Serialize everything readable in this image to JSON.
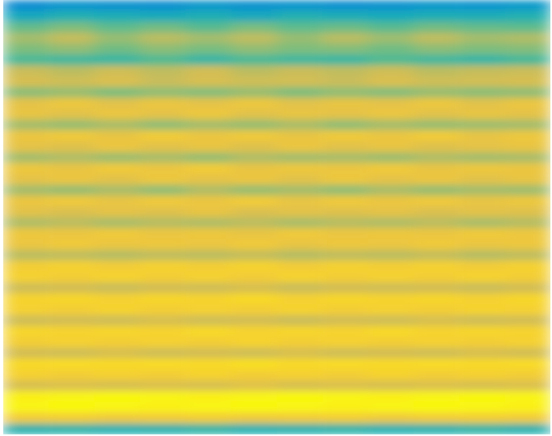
{
  "chart_data": {
    "type": "heatmap",
    "tick_labels": false,
    "zlim": [
      0,
      1
    ],
    "cells": [
      [
        0.28,
        0.31,
        0.3,
        0.29,
        0.32,
        0.3,
        0.31,
        0.29,
        0.3,
        0.32,
        0.31,
        0.33
      ],
      [
        0.4,
        0.44,
        0.42,
        0.41,
        0.43,
        0.4,
        0.44,
        0.42,
        0.41,
        0.43,
        0.42,
        0.44
      ],
      [
        0.56,
        0.6,
        0.55,
        0.58,
        0.54,
        0.59,
        0.55,
        0.57,
        0.54,
        0.58,
        0.56,
        0.55
      ],
      [
        0.66,
        0.72,
        0.64,
        0.7,
        0.66,
        0.71,
        0.64,
        0.7,
        0.65,
        0.71,
        0.66,
        0.68
      ],
      [
        0.6,
        0.63,
        0.58,
        0.62,
        0.59,
        0.63,
        0.6,
        0.61,
        0.58,
        0.62,
        0.6,
        0.61
      ],
      [
        0.52,
        0.5,
        0.49,
        0.53,
        0.48,
        0.52,
        0.5,
        0.49,
        0.53,
        0.5,
        0.48,
        0.51
      ],
      [
        0.73,
        0.7,
        0.74,
        0.71,
        0.75,
        0.7,
        0.73,
        0.71,
        0.74,
        0.7,
        0.72,
        0.73
      ],
      [
        0.76,
        0.74,
        0.77,
        0.73,
        0.76,
        0.74,
        0.75,
        0.73,
        0.77,
        0.74,
        0.75,
        0.76
      ],
      [
        0.62,
        0.64,
        0.6,
        0.63,
        0.61,
        0.64,
        0.6,
        0.63,
        0.61,
        0.64,
        0.62,
        0.63
      ],
      [
        0.8,
        0.83,
        0.79,
        0.82,
        0.8,
        0.83,
        0.79,
        0.81,
        0.8,
        0.83,
        0.79,
        0.82
      ],
      [
        0.81,
        0.79,
        0.82,
        0.8,
        0.83,
        0.79,
        0.81,
        0.8,
        0.82,
        0.79,
        0.81,
        0.8
      ],
      [
        0.66,
        0.64,
        0.67,
        0.63,
        0.66,
        0.64,
        0.67,
        0.63,
        0.66,
        0.64,
        0.65,
        0.66
      ],
      [
        0.82,
        0.84,
        0.81,
        0.85,
        0.82,
        0.84,
        0.81,
        0.84,
        0.82,
        0.85,
        0.81,
        0.83
      ],
      [
        0.8,
        0.78,
        0.82,
        0.79,
        0.81,
        0.78,
        0.82,
        0.79,
        0.81,
        0.78,
        0.8,
        0.81
      ],
      [
        0.66,
        0.68,
        0.65,
        0.67,
        0.64,
        0.68,
        0.66,
        0.67,
        0.65,
        0.68,
        0.66,
        0.67
      ],
      [
        0.83,
        0.81,
        0.84,
        0.82,
        0.85,
        0.81,
        0.83,
        0.82,
        0.84,
        0.81,
        0.83,
        0.82
      ],
      [
        0.8,
        0.82,
        0.79,
        0.83,
        0.8,
        0.82,
        0.79,
        0.83,
        0.8,
        0.82,
        0.79,
        0.81
      ],
      [
        0.66,
        0.64,
        0.67,
        0.63,
        0.68,
        0.64,
        0.66,
        0.63,
        0.67,
        0.64,
        0.66,
        0.65
      ],
      [
        0.82,
        0.84,
        0.81,
        0.84,
        0.82,
        0.85,
        0.81,
        0.84,
        0.82,
        0.84,
        0.81,
        0.83
      ],
      [
        0.79,
        0.77,
        0.8,
        0.78,
        0.81,
        0.77,
        0.79,
        0.78,
        0.8,
        0.77,
        0.79,
        0.78
      ],
      [
        0.68,
        0.7,
        0.67,
        0.69,
        0.68,
        0.7,
        0.67,
        0.69,
        0.68,
        0.7,
        0.67,
        0.69
      ],
      [
        0.83,
        0.82,
        0.84,
        0.82,
        0.83,
        0.81,
        0.84,
        0.82,
        0.83,
        0.82,
        0.84,
        0.83
      ],
      [
        0.82,
        0.84,
        0.82,
        0.83,
        0.82,
        0.84,
        0.81,
        0.83,
        0.82,
        0.84,
        0.82,
        0.83
      ],
      [
        0.7,
        0.71,
        0.69,
        0.71,
        0.7,
        0.72,
        0.69,
        0.71,
        0.7,
        0.72,
        0.69,
        0.71
      ],
      [
        0.86,
        0.87,
        0.85,
        0.87,
        0.86,
        0.88,
        0.85,
        0.87,
        0.86,
        0.87,
        0.85,
        0.87
      ],
      [
        0.87,
        0.86,
        0.88,
        0.86,
        0.87,
        0.85,
        0.88,
        0.86,
        0.87,
        0.86,
        0.88,
        0.86
      ],
      [
        0.74,
        0.75,
        0.73,
        0.75,
        0.74,
        0.76,
        0.73,
        0.75,
        0.74,
        0.75,
        0.73,
        0.75
      ],
      [
        0.88,
        0.89,
        0.87,
        0.89,
        0.88,
        0.9,
        0.87,
        0.89,
        0.88,
        0.89,
        0.87,
        0.89
      ],
      [
        0.87,
        0.86,
        0.88,
        0.86,
        0.87,
        0.86,
        0.88,
        0.86,
        0.87,
        0.86,
        0.88,
        0.87
      ],
      [
        0.74,
        0.75,
        0.74,
        0.76,
        0.74,
        0.75,
        0.73,
        0.75,
        0.74,
        0.76,
        0.74,
        0.75
      ],
      [
        0.89,
        0.88,
        0.89,
        0.88,
        0.9,
        0.88,
        0.89,
        0.88,
        0.9,
        0.88,
        0.89,
        0.88
      ],
      [
        0.86,
        0.87,
        0.86,
        0.87,
        0.86,
        0.88,
        0.86,
        0.87,
        0.86,
        0.87,
        0.86,
        0.87
      ],
      [
        0.75,
        0.74,
        0.76,
        0.74,
        0.75,
        0.74,
        0.76,
        0.74,
        0.75,
        0.74,
        0.76,
        0.75
      ],
      [
        0.9,
        0.91,
        0.9,
        0.91,
        0.9,
        0.92,
        0.9,
        0.91,
        0.9,
        0.91,
        0.9,
        0.91
      ],
      [
        0.87,
        0.86,
        0.87,
        0.86,
        0.88,
        0.86,
        0.87,
        0.86,
        0.88,
        0.86,
        0.87,
        0.86
      ],
      [
        0.76,
        0.77,
        0.76,
        0.77,
        0.76,
        0.78,
        0.76,
        0.77,
        0.76,
        0.77,
        0.76,
        0.77
      ],
      [
        0.97,
        0.98,
        0.99,
        0.98,
        0.97,
        0.98,
        0.99,
        0.98,
        0.97,
        0.98,
        0.99,
        0.98
      ],
      [
        0.98,
        0.99,
        0.98,
        0.97,
        0.98,
        0.99,
        0.98,
        0.97,
        0.98,
        0.99,
        0.98,
        0.97
      ],
      [
        0.85,
        0.86,
        0.84,
        0.85,
        0.86,
        0.84,
        0.85,
        0.86,
        0.84,
        0.85,
        0.86,
        0.85
      ],
      [
        0.45,
        0.46,
        0.44,
        0.45,
        0.47,
        0.44,
        0.45,
        0.46,
        0.44,
        0.45,
        0.47,
        0.45
      ]
    ]
  }
}
